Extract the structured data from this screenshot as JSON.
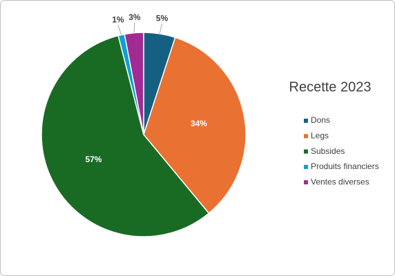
{
  "chart_data": {
    "type": "pie",
    "title": "Recette 2023",
    "categories": [
      "Dons",
      "Legs",
      "Subsides",
      "Produits financiers",
      "Ventes diverses"
    ],
    "values": [
      5,
      34,
      57,
      1,
      3
    ],
    "value_labels": [
      "5%",
      "34%",
      "57%",
      "1%",
      "3%"
    ],
    "colors": [
      "#156082",
      "#e97132",
      "#196b24",
      "#0f9ed5",
      "#a02b93"
    ],
    "legend": "right"
  }
}
